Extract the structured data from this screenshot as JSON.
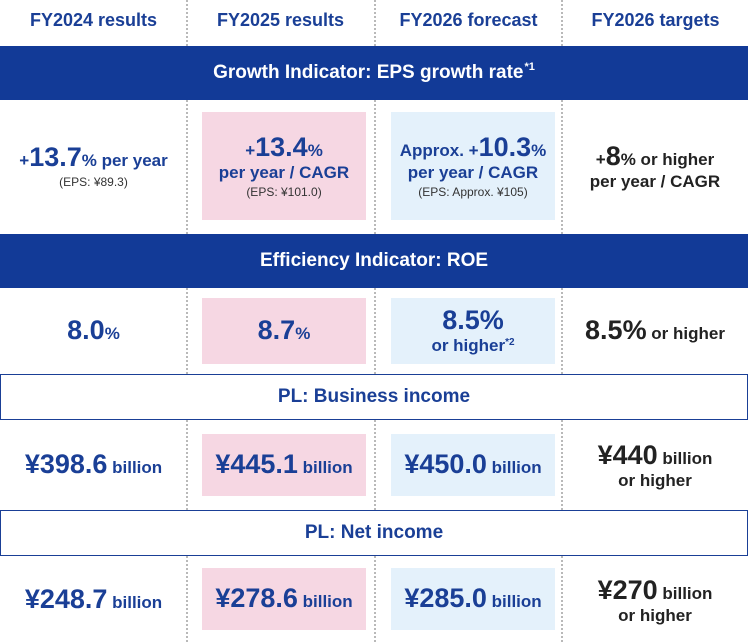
{
  "headers": [
    "FY2024 results",
    "FY2025 results",
    "FY2026 forecast",
    "FY2026 targets"
  ],
  "bands": {
    "growth": {
      "label": "Growth Indicator: EPS growth rate",
      "note": "*1"
    },
    "efficiency": {
      "label": "Efficiency Indicator: ROE"
    },
    "business_income": {
      "label": "PL: Business income"
    },
    "net_income": {
      "label": "PL: Net income"
    }
  },
  "growth": {
    "fy2024": {
      "sign": "+",
      "value": "13.7",
      "unit": "% per year",
      "eps": "(EPS: ¥89.3)"
    },
    "fy2025": {
      "sign": "+",
      "value": "13.4",
      "unit": "%",
      "line2": "per year / CAGR",
      "eps": "(EPS: ¥101.0)"
    },
    "fy2026_forecast": {
      "prefix": "Approx. +",
      "value": "10.3",
      "unit": "%",
      "line2": "per year / CAGR",
      "eps": "(EPS: Approx. ¥105)"
    },
    "fy2026_target": {
      "sign": "+",
      "value": "8",
      "unit": "% or higher",
      "line2": "per year / CAGR"
    }
  },
  "roe": {
    "fy2024": {
      "value": "8.0",
      "unit": "%"
    },
    "fy2025": {
      "value": "8.7",
      "unit": "%"
    },
    "fy2026_forecast": {
      "value": "8.5",
      "unit": "%",
      "line2": "or higher",
      "note": "*2"
    },
    "fy2026_target": {
      "value": "8.5",
      "unit": "%",
      "suffix": " or higher"
    }
  },
  "business_income": {
    "fy2024": {
      "value": "¥398.6",
      "unit": " billion"
    },
    "fy2025": {
      "value": "¥445.1",
      "unit": " billion"
    },
    "fy2026_forecast": {
      "value": "¥450.0",
      "unit": " billion"
    },
    "fy2026_target": {
      "value": "¥440",
      "unit": " billion",
      "line2": "or higher"
    }
  },
  "net_income": {
    "fy2024": {
      "value": "¥248.7",
      "unit": " billion"
    },
    "fy2025": {
      "value": "¥278.6",
      "unit": " billion"
    },
    "fy2026_forecast": {
      "value": "¥285.0",
      "unit": " billion"
    },
    "fy2026_target": {
      "value": "¥270",
      "unit": " billion",
      "line2": "or higher"
    }
  },
  "colors": {
    "navy": "#123a97",
    "text_blue": "#1a3f96",
    "pink": "#f6d7e3",
    "light_blue": "#e4f1fb",
    "dark_text": "#222222"
  }
}
